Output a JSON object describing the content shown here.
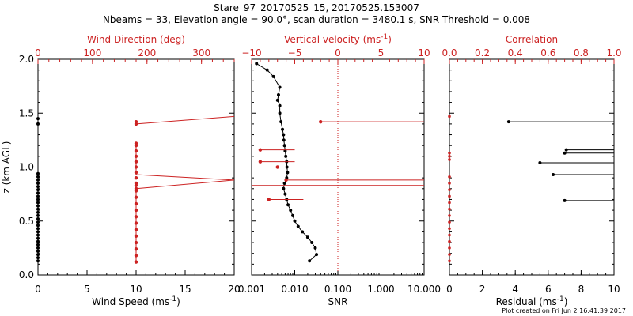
{
  "title_line1": "Stare_97_20170525_15, 20170525.153007",
  "title_line2": "Nbeams = 33, Elevation angle = 90.0°, scan duration = 3480.1 s, SNR Threshold = 0.008",
  "footer": "Plot created on Fri Jun  2 16:41:39 2017",
  "colors": {
    "axis": "#000000",
    "red": "#cc2222"
  },
  "chart_data": [
    {
      "type": "line",
      "panel": "wind",
      "ylabel": "z (km AGL)",
      "ylim": [
        0,
        2
      ],
      "yticks": [
        "0.0",
        "0.5",
        "1.0",
        "1.5",
        "2.0"
      ],
      "xlabel_bottom": "Wind Speed (ms",
      "xlabel_bottom_sup": "-1",
      "xlabel_bottom_tail": ")",
      "xlim_bottom": [
        0,
        20
      ],
      "xticks_bottom": [
        "0",
        "5",
        "10",
        "15",
        "20"
      ],
      "xlabel_top": "Wind Direction (deg)",
      "xlim_top": [
        0,
        360
      ],
      "xticks_top": [
        "0",
        "100",
        "200",
        "300"
      ],
      "series": [
        {
          "name": "Wind Speed",
          "color": "black",
          "x": [
            0,
            0,
            0,
            0,
            0,
            0,
            0,
            0,
            0,
            0,
            0,
            0,
            0,
            0,
            0,
            0,
            0,
            0,
            0,
            0,
            0,
            0,
            0,
            0,
            0,
            0,
            0,
            0,
            0,
            0
          ],
          "y": [
            0.13,
            0.16,
            0.19,
            0.22,
            0.25,
            0.28,
            0.31,
            0.34,
            0.37,
            0.4,
            0.43,
            0.46,
            0.49,
            0.52,
            0.55,
            0.58,
            0.61,
            0.64,
            0.67,
            0.7,
            0.73,
            0.76,
            0.79,
            0.82,
            0.85,
            0.88,
            0.91,
            0.94,
            1.4,
            1.45
          ]
        },
        {
          "name": "Wind Direction",
          "color": "red",
          "x": [
            180,
            180,
            180,
            180,
            180,
            180,
            180,
            180,
            180,
            180,
            180,
            180,
            180,
            180,
            180,
            180,
            180,
            180,
            360,
            180,
            180,
            180,
            180,
            180,
            180,
            360,
            180
          ],
          "y": [
            0.12,
            0.18,
            0.24,
            0.3,
            0.36,
            0.42,
            0.48,
            0.54,
            0.6,
            0.66,
            0.72,
            0.78,
            0.8,
            0.9,
            0.95,
            1.0,
            1.05,
            1.1,
            0.88,
            0.85,
            0.83,
            1.15,
            1.2,
            1.22,
            1.4,
            1.47,
            1.42
          ]
        }
      ]
    },
    {
      "type": "line",
      "panel": "velocity",
      "ylim": [
        0,
        2
      ],
      "xscale_bottom": "log",
      "xlabel_bottom": "SNR",
      "xlim_bottom": [
        0.001,
        10
      ],
      "xticks_bottom": [
        "0.001",
        "0.010",
        "0.100",
        "1.000",
        "10.000"
      ],
      "xlabel_top": "Vertical velocity (ms",
      "xlabel_top_sup": "-1",
      "xlabel_top_tail": ")",
      "xlim_top": [
        -10,
        10
      ],
      "xticks_top": [
        "−10",
        "−5",
        "0",
        "5",
        "10"
      ],
      "threshold_line_snr": 0.1,
      "series": [
        {
          "name": "SNR",
          "color": "black",
          "x": [
            0.022,
            0.032,
            0.03,
            0.025,
            0.02,
            0.015,
            0.012,
            0.01,
            0.009,
            0.008,
            0.007,
            0.0065,
            0.006,
            0.0055,
            0.0058,
            0.0065,
            0.0068,
            0.0066,
            0.0065,
            0.0062,
            0.006,
            0.0058,
            0.0056,
            0.0055,
            0.0052,
            0.0048,
            0.0045,
            0.0045,
            0.004,
            0.0042,
            0.0045,
            0.0032,
            0.0023,
            0.0013
          ],
          "y": [
            0.13,
            0.19,
            0.25,
            0.3,
            0.35,
            0.4,
            0.45,
            0.5,
            0.55,
            0.6,
            0.65,
            0.7,
            0.75,
            0.8,
            0.85,
            0.9,
            0.95,
            1.0,
            1.05,
            1.1,
            1.15,
            1.2,
            1.25,
            1.3,
            1.35,
            1.42,
            1.5,
            1.57,
            1.62,
            1.67,
            1.74,
            1.84,
            1.9,
            1.96
          ]
        },
        {
          "name": "Vertical velocity",
          "color": "red",
          "points": [
            {
              "v": -8.0,
              "z": 0.7,
              "end": -4.0
            },
            {
              "v": -6.0,
              "z": 0.88,
              "end": 10.0
            },
            {
              "v": -7.0,
              "z": 1.0,
              "end": -4.0
            },
            {
              "v": -9.0,
              "z": 1.05,
              "end": -5.0
            },
            {
              "v": -9.0,
              "z": 1.16,
              "end": -5.0
            },
            {
              "v": -2.0,
              "z": 1.42,
              "end": 10.0
            }
          ],
          "black_line_z": 0.83
        }
      ]
    },
    {
      "type": "line",
      "panel": "correlation",
      "ylim": [
        0,
        2
      ],
      "xlabel_bottom": "Residual (ms",
      "xlabel_bottom_sup": "-1",
      "xlabel_bottom_tail": ")",
      "xlim_bottom": [
        0,
        10
      ],
      "xticks_bottom": [
        "0",
        "2",
        "4",
        "6",
        "8",
        "10"
      ],
      "xlabel_top": "Correlation",
      "xlim_top": [
        0,
        1
      ],
      "xticks_top": [
        "0.0",
        "0.2",
        "0.4",
        "0.6",
        "0.8",
        "1.0"
      ],
      "series": [
        {
          "name": "Residual",
          "color": "black",
          "points": [
            {
              "r": 3.6,
              "z": 1.42
            },
            {
              "r": 7.1,
              "z": 1.16
            },
            {
              "r": 7.0,
              "z": 1.13
            },
            {
              "r": 5.5,
              "z": 1.04
            },
            {
              "r": 6.3,
              "z": 0.93
            },
            {
              "r": 7.0,
              "z": 0.69
            }
          ]
        },
        {
          "name": "Correlation",
          "color": "red",
          "x": [
            0,
            0,
            0,
            0,
            0,
            0,
            0,
            0,
            0,
            0,
            0,
            0,
            0,
            0,
            0,
            0,
            0,
            0
          ],
          "y": [
            0.13,
            0.19,
            0.25,
            0.31,
            0.37,
            0.43,
            0.49,
            0.55,
            0.61,
            0.67,
            0.73,
            0.79,
            0.85,
            0.91,
            1.07,
            1.1,
            1.13,
            1.47
          ]
        }
      ]
    }
  ]
}
